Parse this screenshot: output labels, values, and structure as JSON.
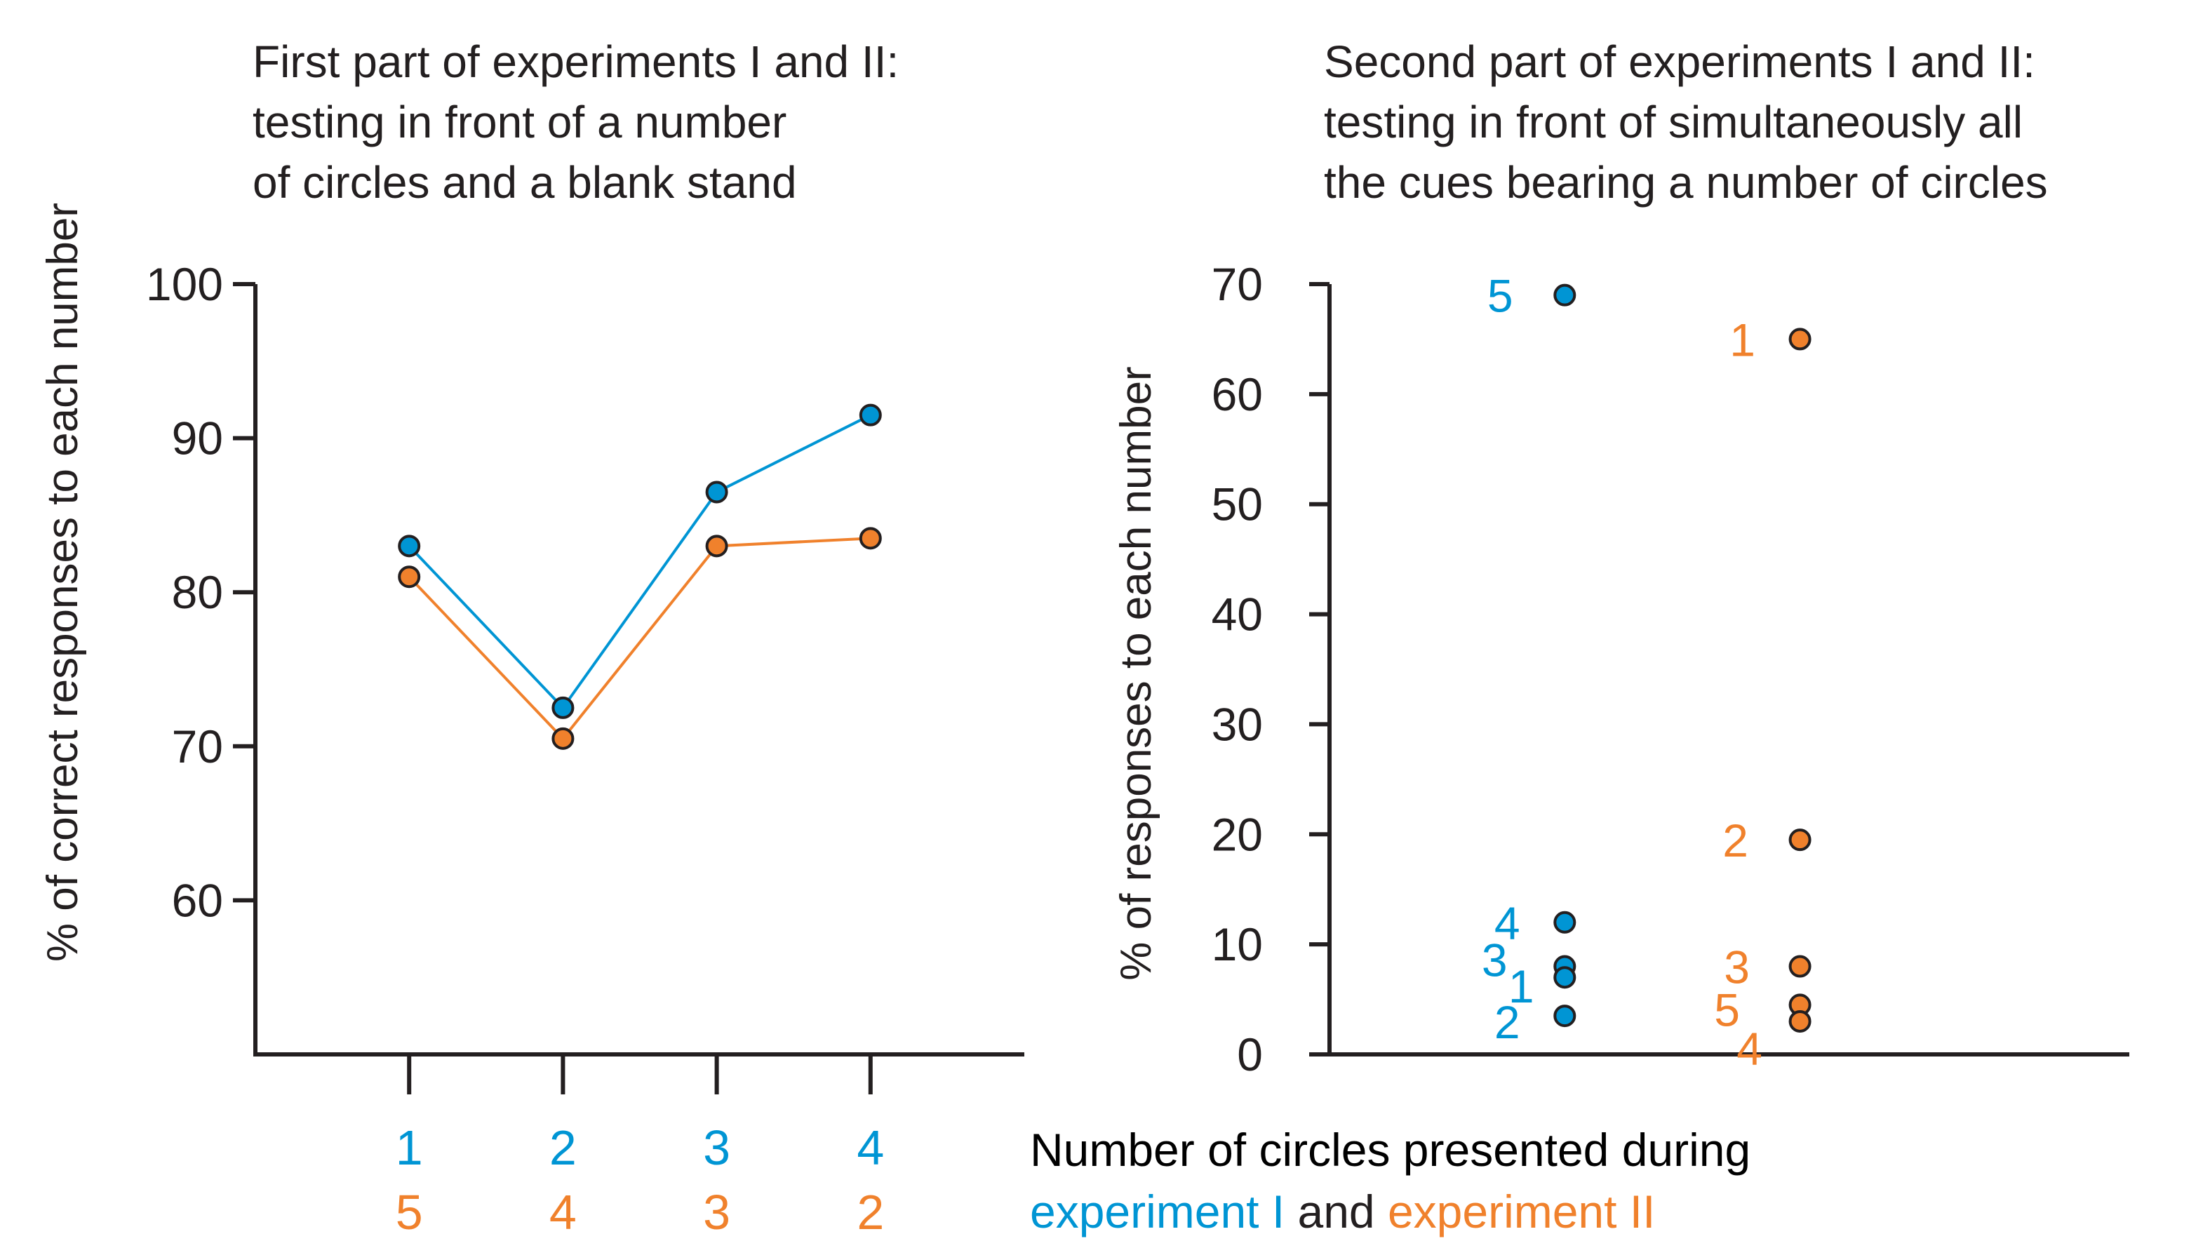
{
  "colors": {
    "experiment_1": "#0095d4",
    "experiment_2": "#f0812c",
    "axis": "#231f20",
    "text": "#231f20"
  },
  "caption": {
    "line1": "Number of circles presented during",
    "exp1": "experiment I",
    "and": " and ",
    "exp2": "experiment II"
  },
  "chart_data": [
    {
      "type": "line",
      "title": [
        "First part of experiments I and II:",
        "testing in front of a number",
        "of circles and a blank stand"
      ],
      "ylabel": "% of correct responses to each number",
      "ylim": [
        50,
        100
      ],
      "yticks": [
        60,
        70,
        80,
        90,
        100
      ],
      "x_positions": [
        1,
        2,
        3,
        4
      ],
      "xlim": [
        0,
        5
      ],
      "category_labels": {
        "experiment_1": [
          "1",
          "2",
          "3",
          "4"
        ],
        "experiment_2": [
          "5",
          "4",
          "3",
          "2"
        ]
      },
      "series": [
        {
          "name": "experiment I",
          "color_key": "experiment_1",
          "values": [
            83,
            72.5,
            86.5,
            91.5
          ]
        },
        {
          "name": "experiment II",
          "color_key": "experiment_2",
          "values": [
            81,
            70.5,
            83,
            83.5
          ]
        }
      ]
    },
    {
      "type": "scatter",
      "title": [
        "Second part of experiments I and II:",
        "testing in front of simultaneously all",
        "the cues bearing a number of circles"
      ],
      "ylabel": "% of responses to each number",
      "ylim": [
        0,
        70
      ],
      "yticks": [
        0,
        10,
        20,
        30,
        40,
        50,
        60,
        70
      ],
      "xlim": [
        0,
        3.4
      ],
      "series": [
        {
          "name": "experiment I",
          "color_key": "experiment_1",
          "x": 1,
          "points": [
            {
              "label": "5",
              "value": 69
            },
            {
              "label": "4",
              "value": 12
            },
            {
              "label": "3",
              "value": 8
            },
            {
              "label": "1",
              "value": 7
            },
            {
              "label": "2",
              "value": 3.5
            }
          ]
        },
        {
          "name": "experiment II",
          "color_key": "experiment_2",
          "x": 2,
          "points": [
            {
              "label": "1",
              "value": 65
            },
            {
              "label": "2",
              "value": 19.5
            },
            {
              "label": "3",
              "value": 8
            },
            {
              "label": "5",
              "value": 4.5
            },
            {
              "label": "4",
              "value": 3
            }
          ]
        }
      ]
    }
  ]
}
